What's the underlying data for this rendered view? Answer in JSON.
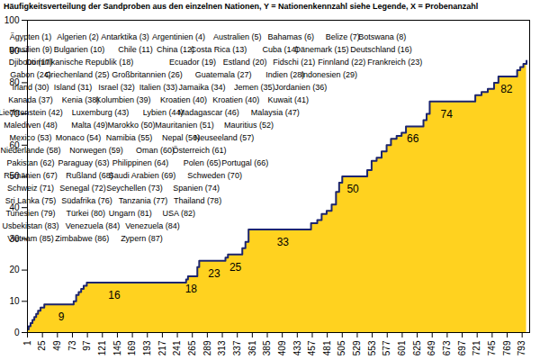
{
  "chart_data": {
    "type": "area",
    "title": "Häufigkeitsverteilung der Sandproben aus den einzelnen Nationen, Y = Nationenkennzahl siehe Legende, X = Probenanzahl",
    "x": [
      1,
      3,
      6,
      9,
      12,
      15,
      18,
      22,
      28,
      75,
      79,
      83,
      87,
      91,
      96,
      255,
      258,
      273,
      276,
      318,
      322,
      345,
      350,
      355,
      455,
      465,
      472,
      480,
      488,
      495,
      500,
      505,
      545,
      552,
      560,
      568,
      576,
      583,
      592,
      600,
      607,
      635,
      640,
      645,
      718,
      728,
      738,
      748,
      755,
      785,
      790,
      795,
      800
    ],
    "values": [
      1,
      2,
      3,
      4,
      5,
      6,
      7,
      8,
      9,
      10,
      12,
      13,
      14,
      15,
      16,
      17,
      18,
      21,
      23,
      24,
      25,
      27,
      29,
      33,
      35,
      36,
      38,
      39,
      41,
      45,
      48,
      50,
      52,
      55,
      56,
      58,
      60,
      62,
      63,
      64,
      66,
      68,
      70,
      74,
      76,
      77,
      78,
      80,
      82,
      84,
      85,
      86,
      87
    ],
    "color": "#ffd21f",
    "xlim": [
      1,
      805
    ],
    "xticks": [
      1,
      25,
      49,
      73,
      97,
      121,
      145,
      169,
      193,
      217,
      241,
      265,
      289,
      313,
      337,
      361,
      385,
      409,
      433,
      457,
      481,
      505,
      529,
      553,
      577,
      601,
      625,
      649,
      673,
      697,
      721,
      745,
      769,
      793
    ],
    "ylim": [
      0,
      100
    ],
    "yticks": [
      0,
      10,
      20,
      30,
      40,
      50,
      60,
      70,
      80,
      90,
      100
    ],
    "grid": false,
    "annotations": [
      {
        "x": 55,
        "y": 9,
        "text": "9"
      },
      {
        "x": 140,
        "y": 16,
        "text": "16"
      },
      {
        "x": 263,
        "y": 18,
        "text": "18"
      },
      {
        "x": 300,
        "y": 23,
        "text": "23"
      },
      {
        "x": 334,
        "y": 25,
        "text": "25"
      },
      {
        "x": 410,
        "y": 33,
        "text": "33"
      },
      {
        "x": 522,
        "y": 50,
        "text": "50"
      },
      {
        "x": 618,
        "y": 66,
        "text": "66"
      },
      {
        "x": 672,
        "y": 74,
        "text": "74"
      },
      {
        "x": 768,
        "y": 82,
        "text": "82"
      }
    ],
    "nation_key": [
      [
        "Ägypten (1)",
        "Algerien (2)",
        "Antarktika (3)",
        "Argentinien (4)",
        "Australien (5)",
        "Bahamas (6)",
        "Belize (7)",
        "Botswana (8)"
      ],
      [
        "Brasilien (9)",
        "Bulgarien (10)",
        "Chile (11)",
        "China (12)",
        "Costa Rica (13)",
        "Cuba (14)",
        "Dänemark (15)",
        "Deutschland (16)"
      ],
      [
        "Djibouti (17)",
        "Dominikanische Republik (18)",
        "Ecuador (19)",
        "Estland (20)",
        "Fidschi (21)",
        "Finnland (22)",
        "Frankreich (23)"
      ],
      [
        "Gabon (24)",
        "Griechenland (25)",
        "Großbritannien (26)",
        "Guatemala (27)",
        "Indien (28)",
        "Indonesien (29)"
      ],
      [
        "Irland (30)",
        "Island (31)",
        "Israel (32)",
        "Italien (33)",
        "Jamaika (34)",
        "Jemen (35)",
        "Jordanien (36)"
      ],
      [
        "Kanada (37)",
        "Kenia (38)",
        "Kolumbien (39)",
        "Kroatien (40)",
        "Kroatien (40)",
        "Kuwait (41)"
      ],
      [
        "Liechtenstein (42)",
        "Luxemburg (43)",
        "Lybien (44)",
        "Madagascar (46)",
        "Malaysia (47)"
      ],
      [
        "Malediven (48)",
        "Malta (49)",
        "Marokko (50)",
        "Mauritanien (51)",
        "Mauritius (52)"
      ],
      [
        "Mexico (53)",
        "Monaco (54)",
        "Namibia (55)",
        "Nepal (56)",
        "Neuseeland (57)"
      ],
      [
        "Niederlande (58)",
        "Norwegen (59)",
        "Oman (60)",
        "Österreich (61)"
      ],
      [
        "Pakistan (62)",
        "Paraguay (63)",
        "Philippinen (64)",
        "Polen (65)",
        "Portugal (66)"
      ],
      [
        "Rumänien (67)",
        "Rußland (68)",
        "Saudi Arabien (69)",
        "Schweden (70)"
      ],
      [
        "Schweiz (71)",
        "Senegal (72)",
        "Seychellen (73)",
        "Spanien (74)"
      ],
      [
        "Sri Lanka (75)",
        "Südafrika (76)",
        "Tanzania (77)",
        "Thailand (78)"
      ],
      [
        "Tunesien (79)",
        "Türkei (80)",
        "Ungarn (81)",
        "USA (82)"
      ],
      [
        "Usbekistan (83)",
        "Venezuela (84)",
        "Venezuela (84)"
      ],
      [
        "Vietnam (85)",
        "Zimbabwe (86)",
        "Zypern (87)"
      ]
    ]
  }
}
